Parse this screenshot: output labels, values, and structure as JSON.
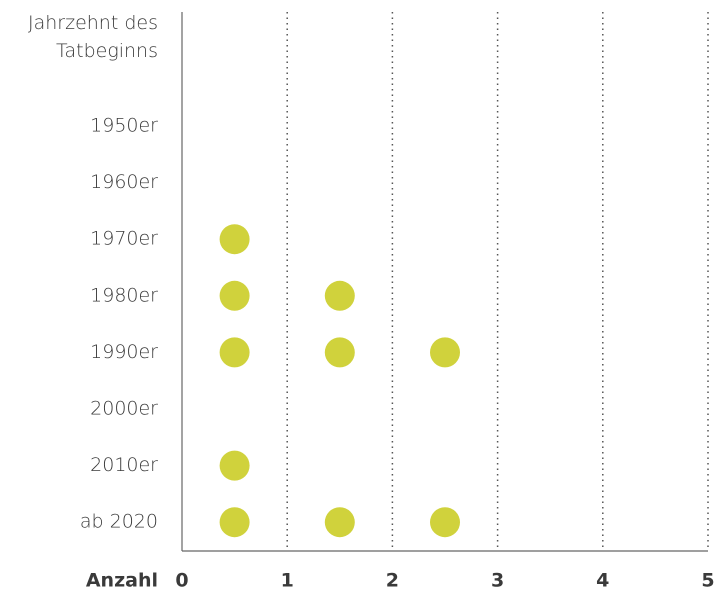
{
  "chart_data": {
    "type": "dot",
    "ylabel": "Jahrzehnt des Tatbeginns",
    "xlabel": "Anzahl",
    "categories": [
      "1950er",
      "1960er",
      "1970er",
      "1980er",
      "1990er",
      "2000er",
      "2010er",
      "ab 2020"
    ],
    "values": [
      0,
      0,
      1,
      2,
      3,
      0,
      1,
      3
    ],
    "color": "#d0d23c",
    "xlim": [
      0,
      5
    ],
    "xticks": [
      0,
      1,
      2,
      3,
      4,
      5
    ],
    "grid": true
  }
}
